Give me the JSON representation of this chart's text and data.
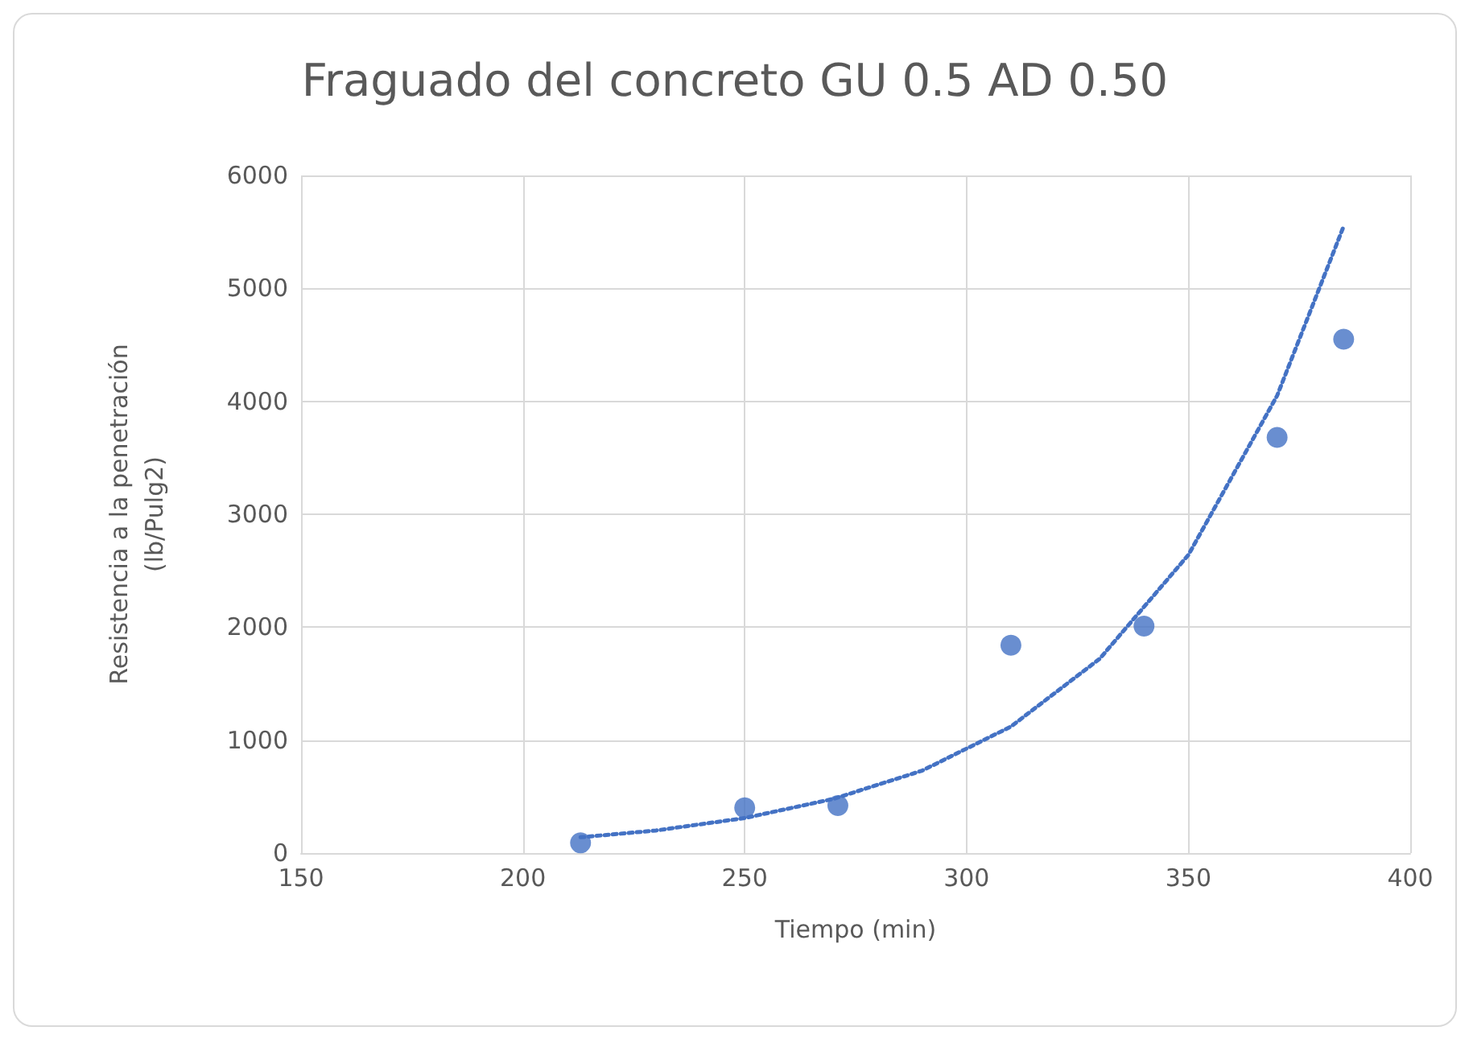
{
  "chart_data": {
    "type": "scatter",
    "title": "Fraguado del concreto GU 0.5 AD 0.50",
    "xlabel": "Tiempo (min)",
    "ylabel": "Resistencia a la penetración\n(lb/Pulg2)",
    "xlim": [
      150,
      400
    ],
    "xticks": [
      150,
      200,
      250,
      300,
      350,
      400
    ],
    "ylim": [
      0,
      6000
    ],
    "yticks": [
      0,
      1000,
      2000,
      3000,
      4000,
      5000,
      6000
    ],
    "grid": true,
    "marker": "circle",
    "series": [
      {
        "color": "#4472c4",
        "x": [
          213,
          250,
          271,
          310,
          340,
          370,
          385
        ],
        "values": [
          90,
          400,
          420,
          1840,
          2010,
          3680,
          4550
        ]
      },
      {
        "type": "line",
        "color": "#4472c4",
        "line_style": "dotted",
        "marker": "none",
        "x": [
          213,
          230,
          250,
          270,
          290,
          310,
          330,
          350,
          370,
          385
        ],
        "values": [
          140,
          200,
          310,
          480,
          730,
          1120,
          1720,
          2640,
          4050,
          5550
        ]
      }
    ]
  }
}
